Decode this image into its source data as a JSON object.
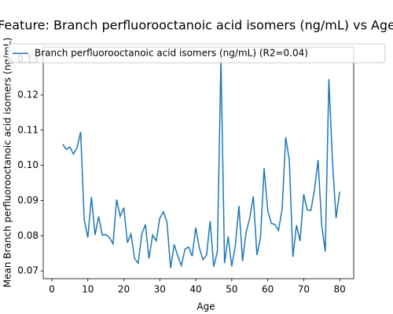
{
  "chart_data": {
    "type": "line",
    "title": "Feature: Branch perfluorooctanoic acid isomers (ng/mL) vs Age",
    "xlabel": "Age",
    "ylabel": "Mean Branch perfluorooctanoic acid isomers (ng/mL)",
    "x": [
      3,
      4,
      5,
      6,
      7,
      8,
      9,
      10,
      11,
      12,
      13,
      14,
      15,
      16,
      17,
      18,
      19,
      20,
      21,
      22,
      23,
      24,
      25,
      26,
      27,
      28,
      29,
      30,
      31,
      32,
      33,
      34,
      35,
      36,
      37,
      38,
      39,
      40,
      41,
      42,
      43,
      44,
      45,
      46,
      47,
      48,
      49,
      50,
      51,
      52,
      53,
      54,
      55,
      56,
      57,
      58,
      59,
      60,
      61,
      62,
      63,
      64,
      65,
      66,
      67,
      68,
      69,
      70,
      71,
      72,
      73,
      74,
      75,
      76,
      77,
      78,
      79,
      80
    ],
    "series": [
      {
        "name": "Branch perfluorooctanoic acid isomers (ng/mL) (R2=0.04)",
        "color": "#1f77b4",
        "values": [
          0.106,
          0.1045,
          0.1052,
          0.1032,
          0.105,
          0.1095,
          0.0845,
          0.0795,
          0.091,
          0.0802,
          0.0855,
          0.0802,
          0.0803,
          0.0795,
          0.0777,
          0.0903,
          0.0855,
          0.088,
          0.078,
          0.0805,
          0.0735,
          0.0722,
          0.0805,
          0.0832,
          0.0735,
          0.0802,
          0.0785,
          0.085,
          0.0868,
          0.0838,
          0.0708,
          0.0775,
          0.0742,
          0.0715,
          0.0762,
          0.0768,
          0.0742,
          0.0823,
          0.0765,
          0.0732,
          0.0745,
          0.0842,
          0.0712,
          0.0755,
          0.1305,
          0.0722,
          0.0798,
          0.0713,
          0.0772,
          0.0885,
          0.0728,
          0.081,
          0.085,
          0.0912,
          0.0745,
          0.0795,
          0.0992,
          0.0872,
          0.0835,
          0.0832,
          0.0815,
          0.0875,
          0.108,
          0.1015,
          0.074,
          0.083,
          0.0785,
          0.0918,
          0.0873,
          0.0872,
          0.093,
          0.1015,
          0.083,
          0.0755,
          0.1245,
          0.101,
          0.085,
          0.0925
        ]
      }
    ],
    "xlim": [
      -2.4,
      83.9
    ],
    "xticks": [
      0,
      10,
      20,
      30,
      40,
      50,
      60,
      70,
      80
    ],
    "ylim": [
      0.0678,
      0.1336
    ],
    "yticks": [
      0.07,
      0.08,
      0.09,
      {
        "value": 0.1,
        "label": "0.10"
      },
      0.11,
      0.12,
      0.13
    ],
    "legend": "upper left"
  }
}
